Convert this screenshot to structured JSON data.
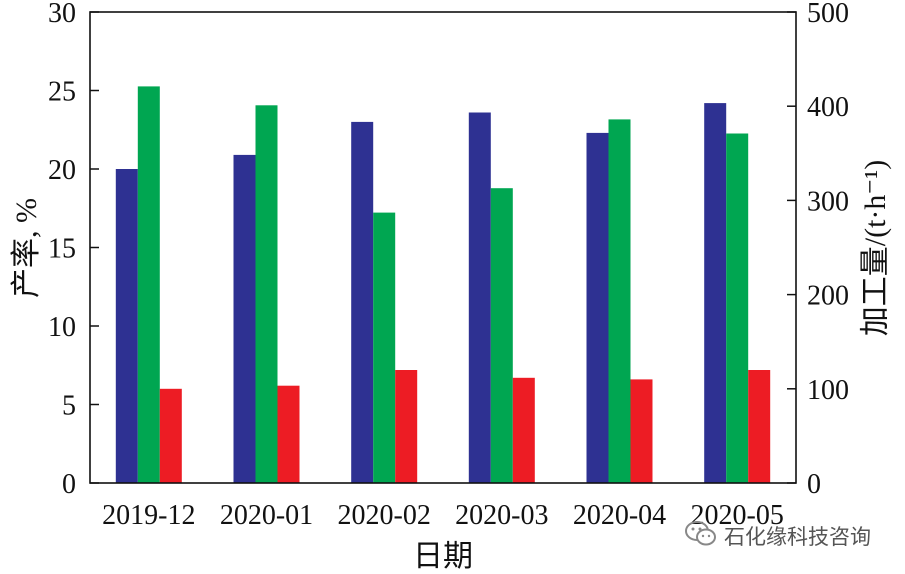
{
  "chart_data": {
    "type": "bar",
    "categories": [
      "2019-12",
      "2020-01",
      "2020-02",
      "2020-03",
      "2020-04",
      "2020-05"
    ],
    "series": [
      {
        "axis": "left",
        "color": "#2e3192",
        "values": [
          20.0,
          20.9,
          23.0,
          23.6,
          22.3,
          24.2
        ]
      },
      {
        "axis": "right",
        "color": "#00a651",
        "values": [
          421,
          401,
          287,
          313,
          386,
          371
        ]
      },
      {
        "axis": "left",
        "color": "#ed1c24",
        "values": [
          6.0,
          6.2,
          7.2,
          6.7,
          6.6,
          7.2
        ]
      }
    ],
    "xlabel": "日期",
    "ylabel_left": "产率, %",
    "ylabel_right": "加工量/(t·h⁻¹)",
    "ylim_left": [
      0,
      30
    ],
    "ylim_right": [
      0,
      500
    ],
    "yticks_left": [
      "0",
      "5",
      "10",
      "15",
      "20",
      "25",
      "30"
    ],
    "yticks_right": [
      "0",
      "100",
      "200",
      "300",
      "400",
      "500"
    ],
    "grid": false,
    "legend": "none"
  },
  "watermark": {
    "text": "石化缘科技咨询",
    "icon": "wechat-icon"
  }
}
